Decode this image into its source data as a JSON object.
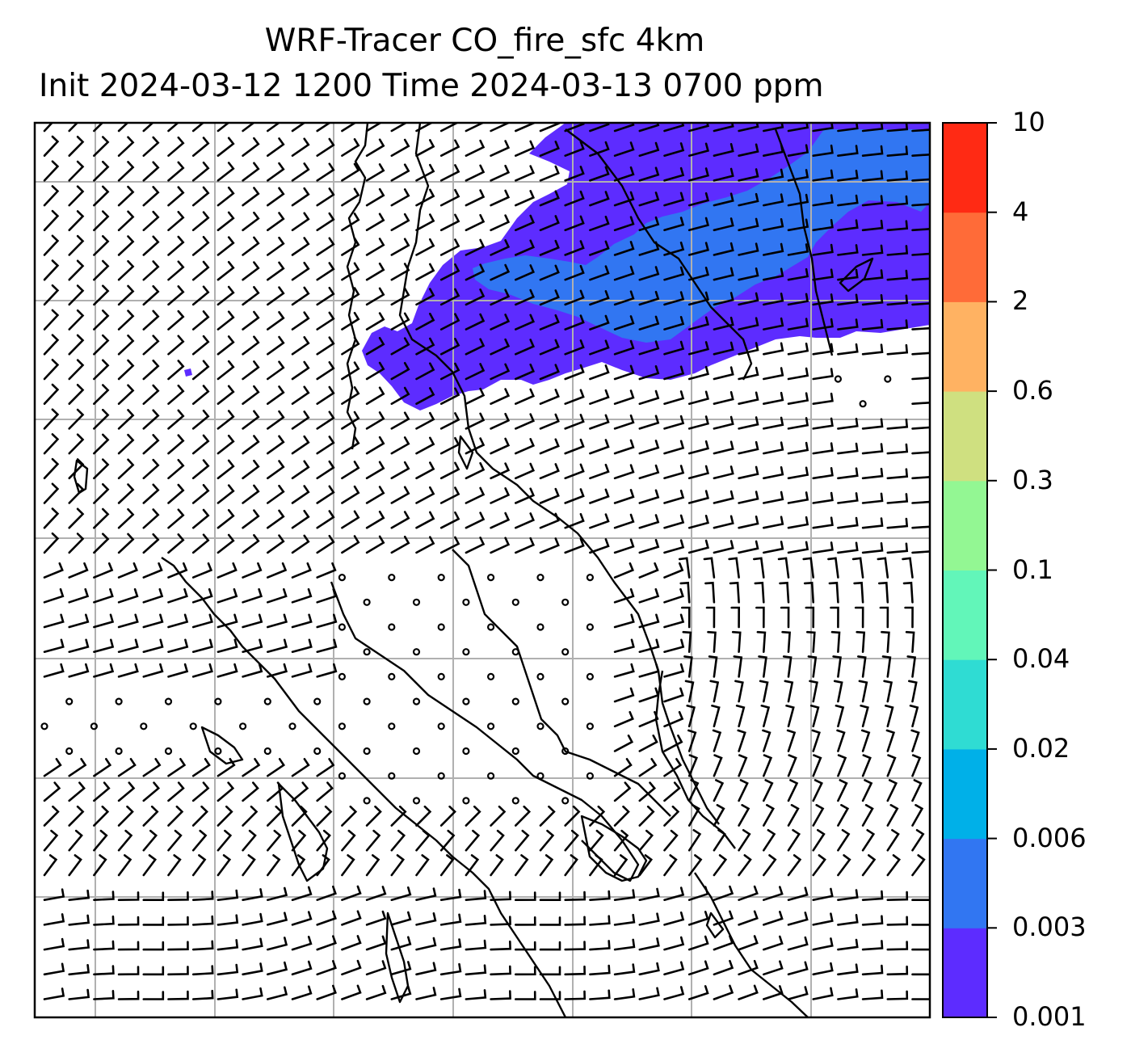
{
  "title": {
    "line1": "WRF-Tracer CO_fire_sfc 4km",
    "line2": "Init 2024-03-12 1200 Time 2024-03-13 0700 ppm"
  },
  "colorbar": {
    "levels": [
      "0.001",
      "0.003",
      "0.006",
      "0.02",
      "0.04",
      "0.1",
      "0.3",
      "0.6",
      "2",
      "4",
      "10"
    ],
    "colors": [
      "#5d2cff",
      "#3176f2",
      "#00b0e8",
      "#2fdcd3",
      "#62f6b9",
      "#93f793",
      "#cfe080",
      "#ffb262",
      "#ff6b38",
      "#ff2a14"
    ]
  },
  "map": {
    "frame_color": "#000000",
    "grid_color": "#b0b0b0",
    "coastline_color": "#000000",
    "wind_barb_color": "#000000"
  }
}
